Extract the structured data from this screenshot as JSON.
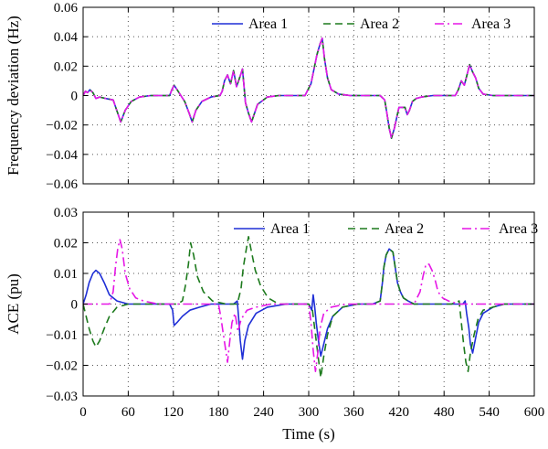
{
  "chart_data": [
    {
      "type": "line",
      "xlabel": "",
      "ylabel": "Frequency deviation (Hz)",
      "xlim": [
        0,
        600
      ],
      "ylim": [
        -0.06,
        0.06
      ],
      "xticks": [
        0,
        60,
        120,
        180,
        240,
        300,
        360,
        420,
        480,
        540,
        600
      ],
      "yticks": [
        -0.06,
        -0.04,
        -0.02,
        0,
        0.02,
        0.04,
        0.06
      ],
      "ytick_labels": [
        "−0.06",
        "−0.04",
        "−0.02",
        "0",
        "0.02",
        "0.04",
        "0.06"
      ],
      "grid": true,
      "legend_position": "top-right",
      "series": [
        {
          "name": "Area 1",
          "color": "#1f2fd6",
          "dash": "solid",
          "x": [
            0,
            3,
            6,
            9,
            13,
            17,
            22,
            30,
            40,
            46,
            50,
            56,
            64,
            75,
            90,
            105,
            115,
            118,
            121,
            125,
            130,
            135,
            141,
            145,
            150,
            158,
            170,
            182,
            185,
            188,
            192,
            196,
            200,
            204,
            208,
            212,
            216,
            220,
            224,
            232,
            245,
            260,
            280,
            295,
            303,
            307,
            311,
            315,
            318,
            321,
            325,
            330,
            340,
            355,
            375,
            395,
            401,
            404,
            407,
            410,
            414,
            420,
            428,
            431,
            434,
            438,
            443,
            450,
            465,
            485,
            495,
            499,
            503,
            507,
            511,
            514,
            518,
            522,
            526,
            532,
            545,
            565,
            580,
            600
          ],
          "y": [
            0,
            0.003,
            0.002,
            0.004,
            0.002,
            -0.002,
            -0.001,
            -0.002,
            -0.003,
            -0.012,
            -0.018,
            -0.01,
            -0.004,
            -0.001,
            0,
            0,
            0,
            0.004,
            0.007,
            0.004,
            0,
            -0.004,
            -0.012,
            -0.018,
            -0.01,
            -0.004,
            -0.001,
            0,
            0.003,
            0.01,
            0.014,
            0.008,
            0.017,
            0.006,
            0.012,
            0.018,
            -0.005,
            -0.012,
            -0.018,
            -0.006,
            -0.001,
            0,
            0,
            0,
            0.008,
            0.018,
            0.028,
            0.035,
            0.039,
            0.025,
            0.012,
            0.004,
            0.001,
            0,
            0,
            0,
            -0.003,
            -0.012,
            -0.022,
            -0.029,
            -0.022,
            -0.008,
            -0.008,
            -0.013,
            -0.01,
            -0.004,
            -0.002,
            -0.001,
            0,
            0,
            0,
            0.004,
            0.01,
            0.007,
            0.015,
            0.021,
            0.016,
            0.012,
            0.005,
            0.001,
            0,
            0,
            0,
            0
          ]
        },
        {
          "name": "Area 2",
          "color": "#1d7a1d",
          "dash": "8 5",
          "x": [
            0,
            3,
            6,
            9,
            13,
            17,
            22,
            30,
            40,
            46,
            50,
            56,
            64,
            75,
            90,
            105,
            115,
            118,
            121,
            125,
            130,
            135,
            141,
            145,
            150,
            158,
            170,
            182,
            185,
            188,
            192,
            196,
            200,
            204,
            208,
            212,
            216,
            220,
            224,
            232,
            245,
            260,
            280,
            295,
            303,
            307,
            311,
            315,
            318,
            321,
            325,
            330,
            340,
            355,
            375,
            395,
            401,
            404,
            407,
            410,
            414,
            420,
            428,
            431,
            434,
            438,
            443,
            450,
            465,
            485,
            495,
            499,
            503,
            507,
            511,
            514,
            518,
            522,
            526,
            532,
            545,
            565,
            580,
            600
          ],
          "y": [
            0,
            0.003,
            0.002,
            0.004,
            0.002,
            -0.002,
            -0.001,
            -0.002,
            -0.003,
            -0.012,
            -0.018,
            -0.01,
            -0.004,
            -0.001,
            0,
            0,
            0,
            0.004,
            0.007,
            0.004,
            0,
            -0.004,
            -0.012,
            -0.018,
            -0.01,
            -0.004,
            -0.001,
            0,
            0.003,
            0.01,
            0.014,
            0.008,
            0.017,
            0.006,
            0.012,
            0.018,
            -0.005,
            -0.012,
            -0.018,
            -0.006,
            -0.001,
            0,
            0,
            0,
            0.008,
            0.018,
            0.028,
            0.035,
            0.039,
            0.025,
            0.012,
            0.004,
            0.001,
            0,
            0,
            0,
            -0.003,
            -0.012,
            -0.022,
            -0.029,
            -0.022,
            -0.008,
            -0.008,
            -0.013,
            -0.01,
            -0.004,
            -0.002,
            -0.001,
            0,
            0,
            0,
            0.004,
            0.01,
            0.007,
            0.015,
            0.021,
            0.016,
            0.012,
            0.005,
            0.001,
            0,
            0,
            0,
            0
          ]
        },
        {
          "name": "Area 3",
          "color": "#e617e6",
          "dash": "10 4 2 4",
          "x": [
            0,
            3,
            6,
            9,
            13,
            17,
            22,
            30,
            40,
            46,
            50,
            56,
            64,
            75,
            90,
            105,
            115,
            118,
            121,
            125,
            130,
            135,
            141,
            145,
            150,
            158,
            170,
            182,
            185,
            188,
            192,
            196,
            200,
            204,
            208,
            212,
            216,
            220,
            224,
            232,
            245,
            260,
            280,
            295,
            303,
            307,
            311,
            315,
            318,
            321,
            325,
            330,
            340,
            355,
            375,
            395,
            401,
            404,
            407,
            410,
            414,
            420,
            428,
            431,
            434,
            438,
            443,
            450,
            465,
            485,
            495,
            499,
            503,
            507,
            511,
            514,
            518,
            522,
            526,
            532,
            545,
            565,
            580,
            600
          ],
          "y": [
            0,
            0.003,
            0.002,
            0.004,
            0.002,
            -0.002,
            -0.001,
            -0.002,
            -0.003,
            -0.012,
            -0.018,
            -0.01,
            -0.004,
            -0.001,
            0,
            0,
            0,
            0.004,
            0.007,
            0.004,
            0,
            -0.004,
            -0.012,
            -0.018,
            -0.01,
            -0.004,
            -0.001,
            0,
            0.003,
            0.01,
            0.014,
            0.008,
            0.017,
            0.006,
            0.012,
            0.018,
            -0.005,
            -0.012,
            -0.018,
            -0.006,
            -0.001,
            0,
            0,
            0,
            0.008,
            0.018,
            0.028,
            0.035,
            0.039,
            0.025,
            0.012,
            0.004,
            0.001,
            0,
            0,
            0,
            -0.003,
            -0.012,
            -0.022,
            -0.029,
            -0.022,
            -0.008,
            -0.008,
            -0.013,
            -0.01,
            -0.004,
            -0.002,
            -0.001,
            0,
            0,
            0,
            0.004,
            0.01,
            0.007,
            0.015,
            0.021,
            0.016,
            0.012,
            0.005,
            0.001,
            0,
            0,
            0,
            0
          ]
        }
      ]
    },
    {
      "type": "line",
      "xlabel": "Time (s)",
      "ylabel": "ACE (pu)",
      "xlim": [
        0,
        600
      ],
      "ylim": [
        -0.03,
        0.03
      ],
      "xticks": [
        0,
        60,
        120,
        180,
        240,
        300,
        360,
        420,
        480,
        540,
        600
      ],
      "yticks": [
        -0.03,
        -0.02,
        -0.01,
        0,
        0.01,
        0.02,
        0.03
      ],
      "ytick_labels": [
        "−0.03",
        "−0.02",
        "−0.01",
        "0",
        "0.01",
        "0.02",
        "0.03"
      ],
      "grid": true,
      "legend_position": "top-right",
      "series": [
        {
          "name": "Area 1",
          "color": "#1f2fd6",
          "dash": "solid",
          "x": [
            0,
            4,
            8,
            13,
            17,
            22,
            28,
            35,
            45,
            60,
            90,
            115,
            119,
            121,
            125,
            132,
            142,
            155,
            170,
            190,
            200,
            205,
            207,
            209,
            212,
            215,
            220,
            230,
            245,
            270,
            300,
            304,
            306,
            308,
            310,
            313,
            316,
            320,
            325,
            332,
            345,
            365,
            385,
            395,
            398,
            400,
            403,
            407,
            412,
            415,
            418,
            422,
            426,
            432,
            440,
            452,
            470,
            495,
            505,
            508,
            510,
            513,
            515,
            518,
            522,
            526,
            532,
            545,
            560,
            580,
            600
          ],
          "y": [
            0,
            0.003,
            0.007,
            0.01,
            0.011,
            0.01,
            0.007,
            0.003,
            0.001,
            0,
            0,
            0,
            -0.002,
            -0.007,
            -0.006,
            -0.004,
            -0.002,
            -0.001,
            0,
            0,
            0,
            0.001,
            -0.005,
            -0.012,
            -0.018,
            -0.012,
            -0.007,
            -0.003,
            -0.001,
            0,
            0,
            -0.002,
            0.003,
            -0.001,
            -0.006,
            -0.012,
            -0.017,
            -0.013,
            -0.008,
            -0.004,
            -0.001,
            0,
            0,
            0.001,
            0.007,
            0.012,
            0.016,
            0.018,
            0.017,
            0.012,
            0.007,
            0.004,
            0.002,
            0.001,
            0,
            0,
            0,
            0,
            0,
            0.001,
            -0.003,
            -0.008,
            -0.013,
            -0.016,
            -0.011,
            -0.006,
            -0.003,
            -0.001,
            0,
            0,
            0
          ]
        },
        {
          "name": "Area 2",
          "color": "#1d7a1d",
          "dash": "8 5",
          "x": [
            0,
            4,
            8,
            13,
            17,
            22,
            28,
            35,
            45,
            60,
            90,
            115,
            125,
            132,
            136,
            140,
            143,
            147,
            152,
            160,
            172,
            190,
            205,
            210,
            213,
            217,
            220,
            224,
            229,
            236,
            246,
            260,
            280,
            300,
            305,
            309,
            313,
            316,
            320,
            325,
            332,
            345,
            365,
            385,
            395,
            398,
            400,
            403,
            407,
            412,
            415,
            418,
            422,
            426,
            432,
            440,
            452,
            470,
            490,
            500,
            503,
            506,
            509,
            512,
            515,
            520,
            525,
            532,
            545,
            560,
            580,
            600
          ],
          "y": [
            0,
            -0.004,
            -0.008,
            -0.012,
            -0.014,
            -0.012,
            -0.008,
            -0.004,
            -0.001,
            0,
            0,
            0,
            0,
            0.001,
            0.006,
            0.013,
            0.02,
            0.016,
            0.009,
            0.004,
            0.001,
            0,
            0,
            0.005,
            0.012,
            0.018,
            0.022,
            0.017,
            0.011,
            0.006,
            0.002,
            0,
            0,
            0,
            -0.002,
            -0.01,
            -0.018,
            -0.024,
            -0.017,
            -0.01,
            -0.004,
            -0.001,
            0,
            0,
            0.001,
            0.007,
            0.012,
            0.016,
            0.018,
            0.017,
            0.012,
            0.007,
            0.004,
            0.002,
            0.001,
            0,
            0,
            0,
            0,
            0.001,
            -0.006,
            -0.013,
            -0.019,
            -0.022,
            -0.016,
            -0.01,
            -0.005,
            -0.002,
            -0.001,
            0,
            0,
            0
          ]
        },
        {
          "name": "Area 3",
          "color": "#e617e6",
          "dash": "10 4 2 4",
          "x": [
            0,
            10,
            25,
            35,
            40,
            43,
            46,
            49,
            52,
            56,
            62,
            70,
            80,
            100,
            150,
            180,
            183,
            186,
            189,
            192,
            195,
            198,
            202,
            206,
            210,
            218,
            230,
            250,
            280,
            300,
            303,
            306,
            309,
            312,
            315,
            320,
            330,
            350,
            400,
            440,
            448,
            452,
            456,
            460,
            464,
            468,
            472,
            478,
            486,
            500,
            540,
            600
          ],
          "y": [
            0,
            0,
            0,
            0,
            0.004,
            0.012,
            0.018,
            0.021,
            0.018,
            0.01,
            0.005,
            0.002,
            0.001,
            0,
            0,
            0,
            -0.004,
            -0.009,
            -0.014,
            -0.019,
            -0.012,
            -0.006,
            -0.003,
            -0.009,
            -0.005,
            -0.002,
            -0.001,
            0,
            0,
            0,
            -0.006,
            -0.015,
            -0.022,
            -0.016,
            -0.008,
            -0.003,
            -0.001,
            0,
            0,
            0,
            0.004,
            0.009,
            0.013,
            0.013,
            0.011,
            0.008,
            0.004,
            0.002,
            0.001,
            0,
            0,
            0
          ]
        }
      ]
    }
  ]
}
